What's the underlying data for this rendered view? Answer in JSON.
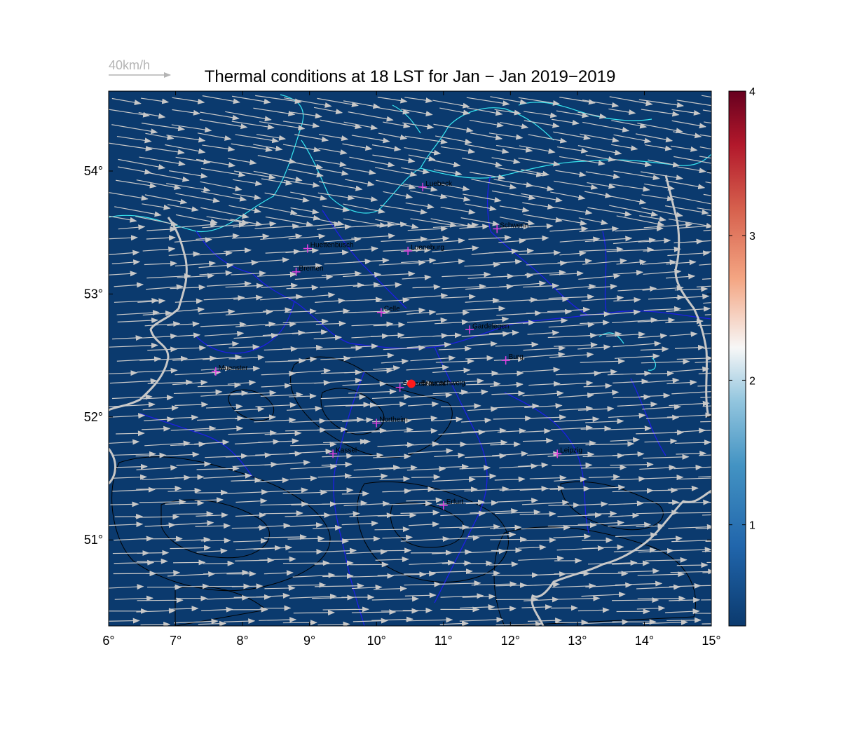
{
  "title": "Thermal conditions at 18 LST for Jan − Jan  2019−2019",
  "reference_arrow": {
    "label": "40km/h",
    "speed_kmh": 40
  },
  "map": {
    "lon_range": [
      6,
      15
    ],
    "lat_range": [
      50.3,
      54.65
    ],
    "lon_ticks": [
      6,
      7,
      8,
      9,
      10,
      11,
      12,
      13,
      14,
      15
    ],
    "lon_tick_labels": [
      "6°",
      "7°",
      "8°",
      "9°",
      "10°",
      "11°",
      "12°",
      "13°",
      "14°",
      "15°"
    ],
    "lat_ticks": [
      51,
      52,
      53,
      54
    ],
    "lat_tick_labels": [
      "51°",
      "52°",
      "53°",
      "54°"
    ],
    "background_color": "#0b3a6e",
    "wind_arrow_color": "#c8c8c8",
    "coast_color": "#37e6f0",
    "state_border_color": "#1e1ee6",
    "country_border_color": "#c8c8c8",
    "city_marker_color": "#e040e0",
    "center_marker_color": "#ff1a1a",
    "predominant_wind": "westerly"
  },
  "center_point": {
    "name": "Braunschweig",
    "lon": 10.52,
    "lat": 52.27
  },
  "cities": [
    {
      "name": "Luebeck",
      "lon": 10.69,
      "lat": 53.87
    },
    {
      "name": "Schwerin",
      "lon": 11.8,
      "lat": 53.53
    },
    {
      "name": "Huettenbusch",
      "lon": 8.97,
      "lat": 53.37
    },
    {
      "name": "Lueneburg",
      "lon": 10.47,
      "lat": 53.35
    },
    {
      "name": "Bremen",
      "lon": 8.8,
      "lat": 53.18
    },
    {
      "name": "Celle",
      "lon": 10.07,
      "lat": 52.85
    },
    {
      "name": "Gardelegen",
      "lon": 11.39,
      "lat": 52.71
    },
    {
      "name": "Burg",
      "lon": 11.93,
      "lat": 52.46
    },
    {
      "name": "Muenster",
      "lon": 7.6,
      "lat": 52.37
    },
    {
      "name": "Schaeferstuhl",
      "lon": 10.35,
      "lat": 52.24
    },
    {
      "name": "Northeim",
      "lon": 10.0,
      "lat": 51.95
    },
    {
      "name": "Kassel",
      "lon": 9.35,
      "lat": 51.7
    },
    {
      "name": "Leipzig",
      "lon": 12.7,
      "lat": 51.7
    },
    {
      "name": "Erfurt",
      "lon": 11.0,
      "lat": 51.28
    }
  ],
  "colorbar": {
    "range": [
      0.3,
      4
    ],
    "ticks": [
      1,
      2,
      3,
      4
    ],
    "tick_labels": [
      "1",
      "2",
      "3",
      "4"
    ],
    "colormap": "blue-white-red (diverging)",
    "colors": [
      "#0b3a6e",
      "#2166ac",
      "#4393c3",
      "#92c5de",
      "#f7f7f7",
      "#f4a582",
      "#d6604d",
      "#b2182b",
      "#67001f"
    ]
  }
}
